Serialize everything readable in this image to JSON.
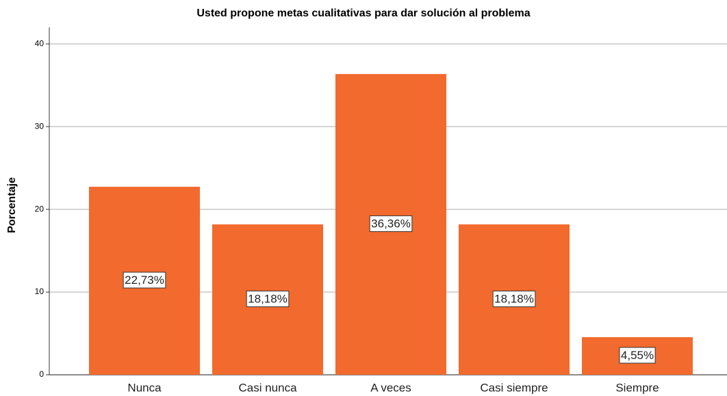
{
  "chart_data": {
    "type": "bar",
    "title": "Usted propone metas cualitativas para dar solución al problema",
    "y_label": "Porcentaje",
    "categories": [
      "Nunca",
      "Casi nunca",
      "A veces",
      "Casi siempre",
      "Siempre"
    ],
    "values": [
      22.73,
      18.18,
      36.36,
      18.18,
      4.55
    ],
    "value_labels": [
      "22,73%",
      "18,18%",
      "36,36%",
      "18,18%",
      "4,55%"
    ],
    "color": "#f26a2e",
    "ylim": [
      0,
      42
    ],
    "yticks": [
      0,
      10,
      20,
      30,
      40
    ],
    "grid": true
  }
}
